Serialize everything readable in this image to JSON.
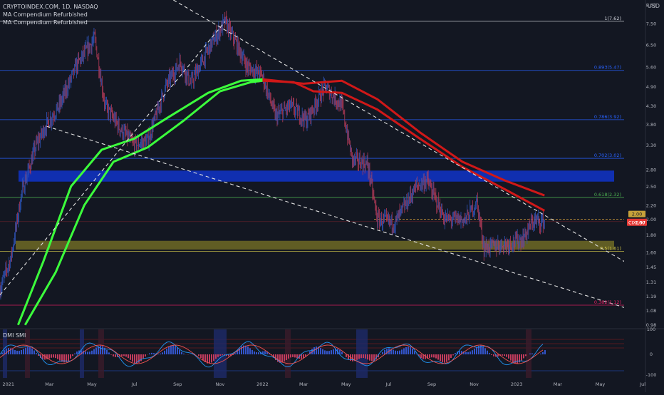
{
  "header": {
    "symbol_line": "CRYPTOINDEX.COM, 1D, NASDAQ",
    "indicators": [
      "MA Compendium Refurbished",
      "MA Compendium Refurbished"
    ],
    "currency": "USD"
  },
  "dmi": {
    "label": "DMI SMI",
    "ticks": [
      "100",
      "0",
      "-100"
    ]
  },
  "colors": {
    "background": "#131722",
    "fib_line": "#2962ff",
    "fib_618": "#4caf50",
    "fib_05": "#d6c94a",
    "fib_382": "#e91e63",
    "ma_green": "#3cff3c",
    "ma_red": "#d01818",
    "blue_zone": "#1030b8",
    "yellow_zone": "#6f6a25",
    "price_badge": "#e53935",
    "candle_up": "#2f54b8",
    "candle_down": "#b23a57"
  },
  "chart_data": {
    "type": "candlestick",
    "title": "CRYPTOINDEX.COM, 1D, NASDAQ",
    "scale": "log",
    "ylim": [
      0.96,
      8.8
    ],
    "y_ticks": [
      "8.50",
      "7.50",
      "6.50",
      "5.60",
      "4.90",
      "4.30",
      "3.80",
      "3.30",
      "2.80",
      "2.50",
      "2.20",
      "2.00",
      "1.80",
      "1.60",
      "1.45",
      "1.31",
      "1.19",
      "1.08",
      "0.98"
    ],
    "x_ticks": [
      "2021",
      "Mar",
      "May",
      "Jul",
      "Sep",
      "Nov",
      "2022",
      "Mar",
      "May",
      "Jul",
      "Sep",
      "Nov",
      "2023",
      "Mar",
      "May",
      "Jul"
    ],
    "current_price": {
      "label": "CIX100",
      "value": "1.97"
    },
    "ref_price": "2.00",
    "fib_levels": [
      {
        "label": "1(7.62)",
        "value": 7.62
      },
      {
        "label": "0.893(5.47)",
        "value": 5.47
      },
      {
        "label": "0.786(3.92)",
        "value": 3.92
      },
      {
        "label": "0.702(3.02)",
        "value": 3.02
      },
      {
        "label": "0.618(2.32)",
        "value": 2.32
      },
      {
        "label": "0.5(1.61)",
        "value": 1.61
      },
      {
        "label": "0.382(1.12)",
        "value": 1.12
      }
    ],
    "zones": [
      {
        "name": "blue-zone",
        "from": 2.58,
        "to": 2.78
      },
      {
        "name": "yellow-zone",
        "from": 1.63,
        "to": 1.73
      }
    ],
    "price_path": [
      [
        "2020-12-20",
        1.25
      ],
      [
        "2021-01-05",
        1.55
      ],
      [
        "2021-01-20",
        2.4
      ],
      [
        "2021-02-10",
        3.3
      ],
      [
        "2021-02-25",
        3.8
      ],
      [
        "2021-03-15",
        4.3
      ],
      [
        "2021-04-10",
        5.7
      ],
      [
        "2021-05-05",
        6.8
      ],
      [
        "2021-05-20",
        4.3
      ],
      [
        "2021-06-10",
        3.7
      ],
      [
        "2021-07-01",
        3.3
      ],
      [
        "2021-07-20",
        3.4
      ],
      [
        "2021-08-15",
        4.9
      ],
      [
        "2021-09-05",
        5.8
      ],
      [
        "2021-09-20",
        5.0
      ],
      [
        "2021-10-15",
        6.3
      ],
      [
        "2021-11-08",
        7.6
      ],
      [
        "2021-11-25",
        6.5
      ],
      [
        "2021-12-10",
        5.6
      ],
      [
        "2021-12-31",
        5.3
      ],
      [
        "2022-01-20",
        4.0
      ],
      [
        "2022-02-10",
        4.3
      ],
      [
        "2022-03-05",
        3.9
      ],
      [
        "2022-04-01",
        4.9
      ],
      [
        "2022-04-25",
        4.3
      ],
      [
        "2022-05-10",
        3.0
      ],
      [
        "2022-06-01",
        2.9
      ],
      [
        "2022-06-15",
        2.0
      ],
      [
        "2022-07-10",
        1.95
      ],
      [
        "2022-08-10",
        2.5
      ],
      [
        "2022-08-25",
        2.6
      ],
      [
        "2022-09-20",
        2.0
      ],
      [
        "2022-10-20",
        2.0
      ],
      [
        "2022-11-05",
        2.25
      ],
      [
        "2022-11-15",
        1.65
      ],
      [
        "2022-12-20",
        1.7
      ],
      [
        "2023-01-10",
        1.75
      ],
      [
        "2023-01-25",
        1.98
      ],
      [
        "2023-02-10",
        1.97
      ]
    ],
    "moving_averages": [
      {
        "name": "ma-green-fast",
        "color": "#3cff3c",
        "points": [
          [
            "2021-01-15",
            0.98
          ],
          [
            "2021-02-20",
            1.5
          ],
          [
            "2021-04-01",
            2.5
          ],
          [
            "2021-05-15",
            3.2
          ],
          [
            "2021-07-01",
            3.45
          ],
          [
            "2021-08-20",
            4.0
          ],
          [
            "2021-10-15",
            4.7
          ],
          [
            "2021-12-01",
            5.1
          ],
          [
            "2022-01-01",
            5.15
          ]
        ]
      },
      {
        "name": "ma-green-slow",
        "color": "#3cff3c",
        "points": [
          [
            "2021-01-25",
            0.98
          ],
          [
            "2021-03-10",
            1.4
          ],
          [
            "2021-04-20",
            2.2
          ],
          [
            "2021-06-01",
            2.95
          ],
          [
            "2021-07-20",
            3.25
          ],
          [
            "2021-09-10",
            3.9
          ],
          [
            "2021-11-01",
            4.75
          ],
          [
            "2021-12-15",
            5.05
          ],
          [
            "2022-01-01",
            5.1
          ]
        ]
      },
      {
        "name": "ma-red-1",
        "color": "#d01818",
        "points": [
          [
            "2022-01-01",
            5.15
          ],
          [
            "2022-03-01",
            5.0
          ],
          [
            "2022-04-25",
            5.1
          ],
          [
            "2022-06-15",
            4.5
          ],
          [
            "2022-08-15",
            3.6
          ],
          [
            "2022-10-15",
            2.95
          ],
          [
            "2022-12-15",
            2.6
          ],
          [
            "2023-02-10",
            2.35
          ]
        ]
      },
      {
        "name": "ma-red-2",
        "color": "#d01818",
        "points": [
          [
            "2022-01-01",
            5.1
          ],
          [
            "2022-02-15",
            5.05
          ],
          [
            "2022-03-15",
            4.75
          ],
          [
            "2022-04-25",
            4.7
          ],
          [
            "2022-06-15",
            4.2
          ],
          [
            "2022-08-15",
            3.45
          ],
          [
            "2022-10-15",
            2.85
          ],
          [
            "2022-12-15",
            2.45
          ],
          [
            "2023-02-10",
            2.12
          ]
        ]
      }
    ],
    "trendlines": [
      {
        "name": "trendline-upper",
        "from": [
          "2021-08-26",
          8.8
        ],
        "to": [
          "2023-07-01",
          1.4
        ]
      },
      {
        "name": "trendline-lower",
        "from": [
          "2021-02-25",
          3.75
        ],
        "to": [
          "2023-07-01",
          1.06
        ]
      },
      {
        "name": "trendline-rising",
        "from": [
          "2020-12-20",
          1.2
        ],
        "to": [
          "2021-11-08",
          7.6
        ]
      }
    ]
  }
}
